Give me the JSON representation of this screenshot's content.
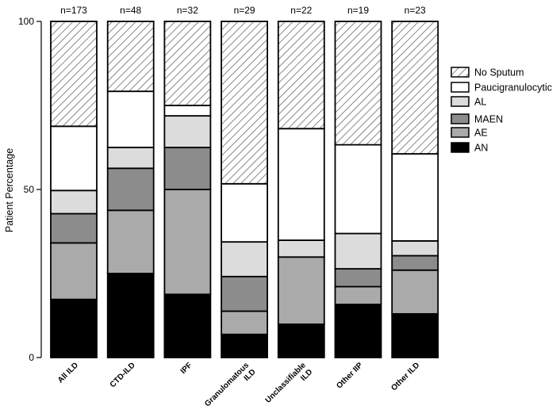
{
  "chart_data": {
    "type": "bar",
    "stacked": true,
    "ylabel": "Patient Percentage",
    "ylim": [
      0,
      100
    ],
    "yticks": [
      0,
      50,
      100
    ],
    "categories": [
      [
        "All ILD"
      ],
      [
        "CTD-ILD"
      ],
      [
        "IPF"
      ],
      [
        "Granulomatous",
        "ILD"
      ],
      [
        "Unclassifiable",
        "ILD"
      ],
      [
        "Other IIP"
      ],
      [
        "Other ILD"
      ]
    ],
    "n_labels": [
      "n=173",
      "n=48",
      "n=32",
      "n=29",
      "n=22",
      "n=19",
      "n=23"
    ],
    "series": [
      {
        "name": "AN",
        "color": "#000000",
        "values": [
          17.3,
          25.0,
          18.8,
          6.9,
          9.9,
          15.8,
          13.0
        ]
      },
      {
        "name": "AE",
        "color": "#aaaaaa",
        "values": [
          16.8,
          18.8,
          31.2,
          6.9,
          20.0,
          5.3,
          13.0
        ]
      },
      {
        "name": "MAEN",
        "color": "#8c8c8c",
        "values": [
          8.7,
          12.5,
          12.5,
          10.3,
          0.0,
          5.3,
          4.3
        ]
      },
      {
        "name": "AL",
        "color": "#dcdcdc",
        "values": [
          6.9,
          6.2,
          9.4,
          10.3,
          5.0,
          10.5,
          4.4
        ]
      },
      {
        "name": "Paucigranulocytic",
        "color": "#ffffff",
        "values": [
          19.1,
          16.7,
          3.1,
          17.3,
          33.2,
          26.4,
          25.9
        ]
      },
      {
        "name": "No Sputum",
        "color": "hatch",
        "values": [
          31.2,
          20.8,
          25.0,
          48.3,
          31.9,
          36.7,
          39.4
        ]
      }
    ],
    "legend": {
      "position": "right",
      "order": [
        "No Sputum",
        "Paucigranulocytic",
        "AL",
        "MAEN",
        "AE",
        "AN"
      ]
    }
  }
}
